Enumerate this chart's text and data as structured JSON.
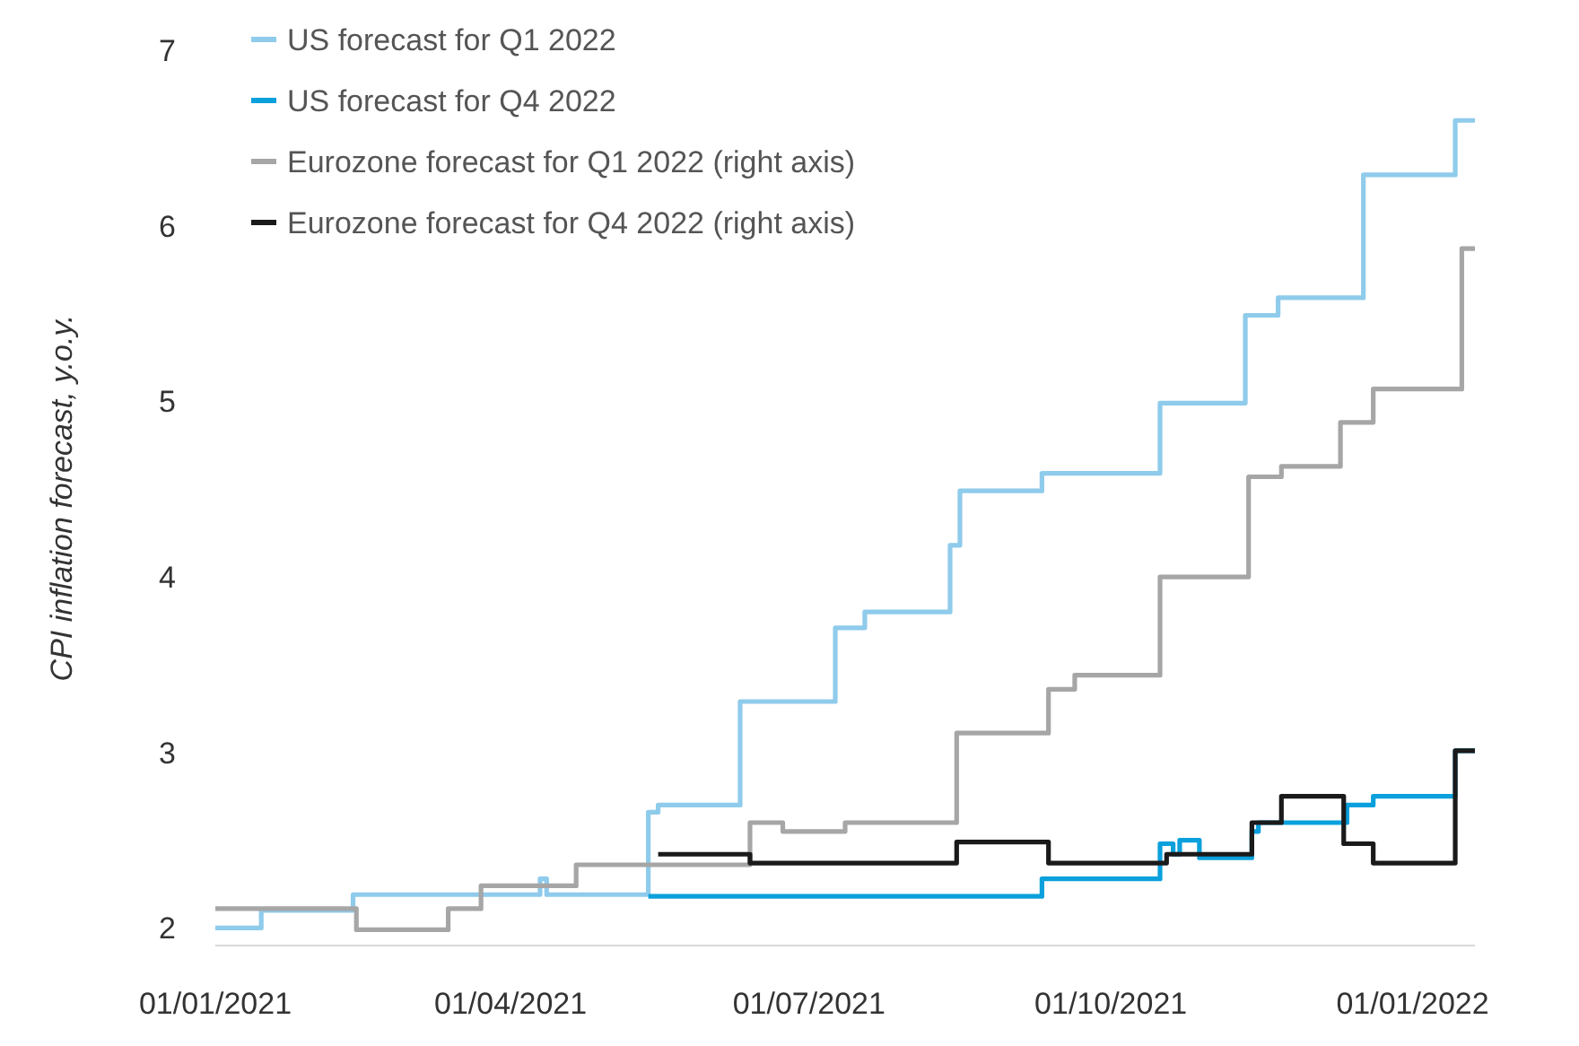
{
  "chart_data": {
    "type": "step",
    "ylabel": "CPI inflation forecast, y.o.y.",
    "xlim": [
      "2021-01-01",
      "2022-01-20"
    ],
    "xticks": [
      {
        "value": "2021-01-01",
        "label": "01/01/2021"
      },
      {
        "value": "2021-04-01",
        "label": "01/04/2021"
      },
      {
        "value": "2021-07-01",
        "label": "01/07/2021"
      },
      {
        "value": "2021-10-01",
        "label": "01/10/2021"
      },
      {
        "value": "2022-01-01",
        "label": "01/01/2022"
      }
    ],
    "ylim": [
      1.9,
      7
    ],
    "yticks": [
      2,
      3,
      4,
      5,
      6,
      7
    ],
    "grid": false,
    "legend": "top left",
    "line_style": "solid",
    "marker": "none",
    "series": [
      {
        "name": "US forecast for Q1 2022",
        "color": "#8fcbeb",
        "x": [
          "2021-01-01",
          "2021-01-15",
          "2021-02-12",
          "2021-04-10",
          "2021-04-12",
          "2021-05-13",
          "2021-05-16",
          "2021-06-10",
          "2021-07-09",
          "2021-07-18",
          "2021-08-13",
          "2021-08-16",
          "2021-09-10",
          "2021-10-16",
          "2021-11-11",
          "2021-11-21",
          "2021-12-17",
          "2022-01-14",
          "2022-01-20"
        ],
        "values": [
          2.0,
          2.1,
          2.19,
          2.28,
          2.19,
          2.66,
          2.7,
          3.29,
          3.71,
          3.8,
          4.18,
          4.49,
          4.59,
          4.99,
          5.49,
          5.59,
          6.29,
          6.6,
          6.6
        ]
      },
      {
        "name": "US forecast for Q4 2022",
        "color": "#0aa0dc",
        "x": [
          "2021-05-13",
          "2021-09-10",
          "2021-10-16",
          "2021-10-20",
          "2021-10-22",
          "2021-10-28",
          "2021-11-13",
          "2021-11-15",
          "2021-12-12",
          "2021-12-20",
          "2022-01-14",
          "2022-01-20"
        ],
        "values": [
          2.18,
          2.28,
          2.48,
          2.42,
          2.5,
          2.4,
          2.55,
          2.6,
          2.7,
          2.75,
          3.01,
          3.01
        ]
      },
      {
        "name": "Eurozone forecast for Q1 2022 (right axis)",
        "color": "#a6a6a6",
        "x": [
          "2021-01-01",
          "2021-02-13",
          "2021-03-13",
          "2021-03-23",
          "2021-04-21",
          "2021-06-13",
          "2021-06-23",
          "2021-07-12",
          "2021-08-15",
          "2021-09-12",
          "2021-09-20",
          "2021-10-16",
          "2021-11-12",
          "2021-11-22",
          "2021-12-10",
          "2021-12-20",
          "2022-01-16",
          "2022-01-20"
        ],
        "values": [
          2.11,
          1.99,
          2.11,
          2.24,
          2.36,
          2.6,
          2.55,
          2.6,
          3.11,
          3.36,
          3.44,
          4.0,
          4.57,
          4.63,
          4.88,
          5.07,
          5.87,
          5.87
        ]
      },
      {
        "name": "Eurozone forecast for Q4 2022 (right axis)",
        "color": "#1a1a1a",
        "x": [
          "2021-05-16",
          "2021-06-13",
          "2021-08-15",
          "2021-09-12",
          "2021-10-18",
          "2021-11-13",
          "2021-11-22",
          "2021-12-11",
          "2021-12-20",
          "2022-01-14",
          "2022-01-20"
        ],
        "values": [
          2.42,
          2.37,
          2.49,
          2.37,
          2.42,
          2.6,
          2.75,
          2.48,
          2.37,
          3.01,
          3.01
        ]
      }
    ]
  }
}
